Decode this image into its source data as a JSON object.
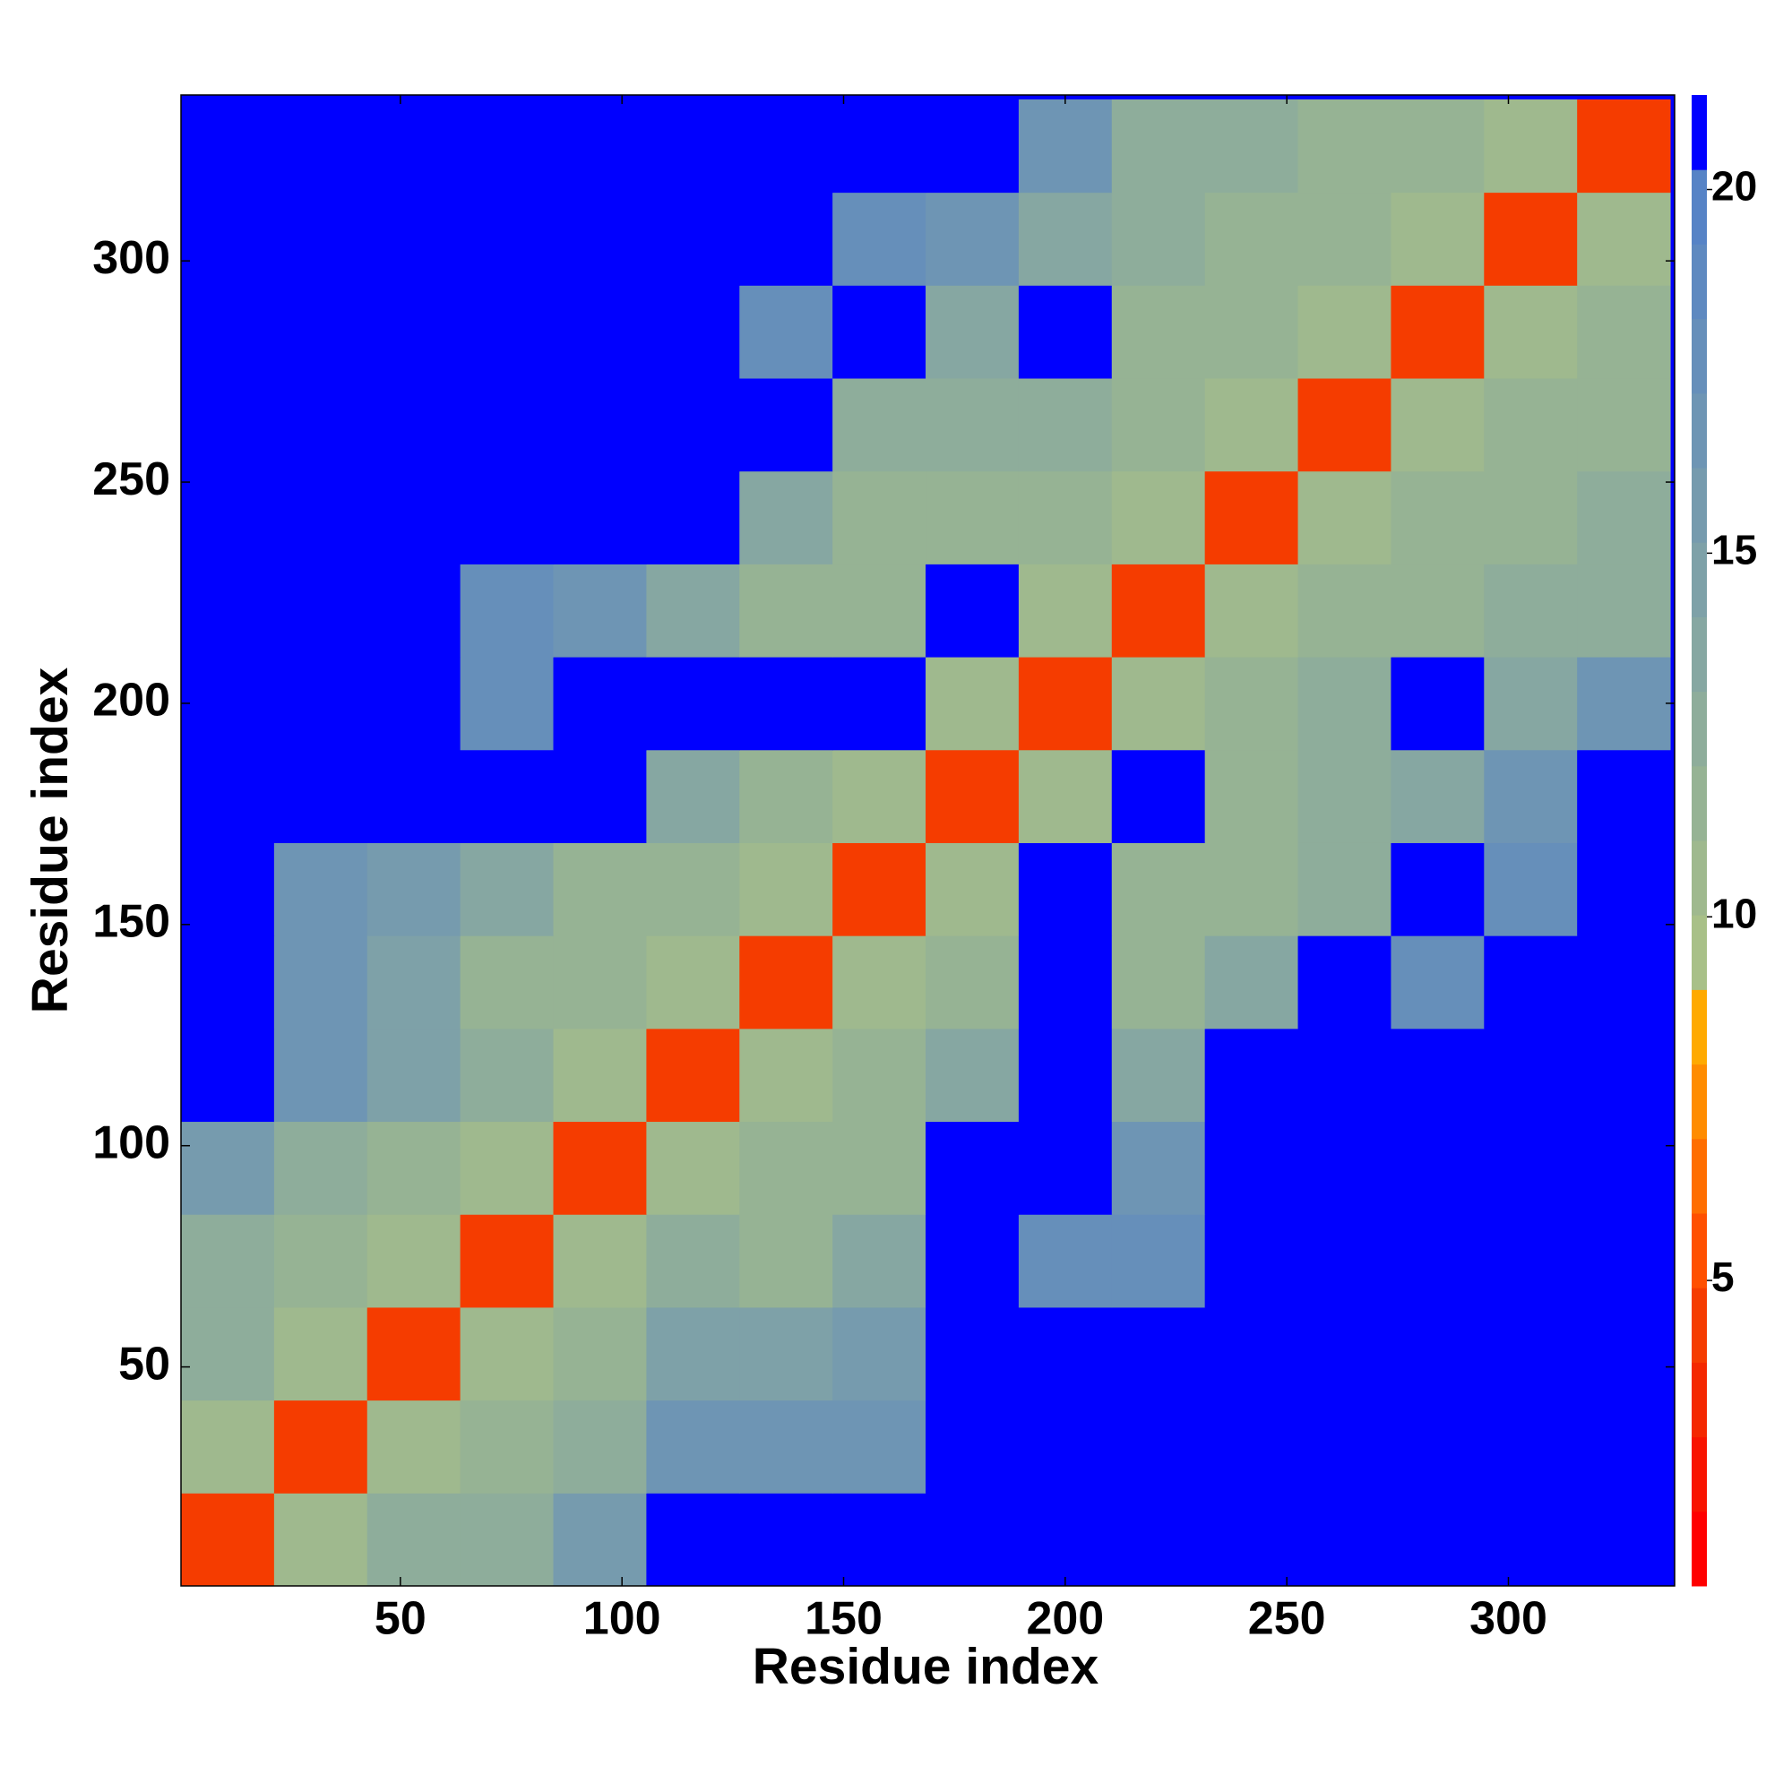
{
  "chart_data": {
    "type": "heatmap",
    "x_label": "Residue index",
    "y_label": "Residue index",
    "x": [
      11,
      32,
      53,
      74,
      95,
      116,
      137,
      158,
      179,
      200,
      221,
      242,
      263,
      284,
      305,
      326
    ],
    "y": [
      11,
      32,
      53,
      74,
      95,
      116,
      137,
      158,
      179,
      200,
      221,
      242,
      263,
      284,
      305,
      326
    ],
    "z": [
      [
        4,
        11,
        13,
        13,
        16,
        25,
        25,
        25,
        25,
        25,
        25,
        25,
        25,
        25,
        25,
        25
      ],
      [
        11,
        4,
        11,
        12,
        13,
        17,
        17,
        17,
        25,
        25,
        25,
        25,
        25,
        25,
        25,
        25
      ],
      [
        13,
        11,
        4,
        11,
        12,
        15,
        15,
        16,
        25,
        25,
        25,
        25,
        25,
        25,
        25,
        25
      ],
      [
        13,
        12,
        11,
        4,
        11,
        13,
        12,
        14,
        25,
        18,
        18,
        25,
        25,
        25,
        25,
        25
      ],
      [
        16,
        13,
        12,
        11,
        4,
        11,
        12,
        12,
        25,
        25,
        17,
        25,
        25,
        25,
        25,
        25
      ],
      [
        25,
        17,
        15,
        13,
        11,
        4,
        11,
        12,
        14,
        25,
        14,
        25,
        25,
        25,
        25,
        25
      ],
      [
        25,
        17,
        15,
        12,
        12,
        11,
        4,
        11,
        12,
        25,
        12,
        14,
        25,
        18,
        25,
        25
      ],
      [
        25,
        17,
        16,
        14,
        12,
        12,
        11,
        4,
        11,
        25,
        12,
        12,
        13,
        25,
        18,
        25
      ],
      [
        25,
        25,
        25,
        25,
        25,
        14,
        12,
        11,
        4,
        11,
        25,
        12,
        13,
        14,
        17,
        25
      ],
      [
        25,
        25,
        25,
        18,
        25,
        25,
        25,
        25,
        11,
        4,
        11,
        12,
        13,
        25,
        14,
        17
      ],
      [
        25,
        25,
        25,
        18,
        17,
        14,
        12,
        12,
        25,
        11,
        4,
        11,
        12,
        12,
        13,
        13
      ],
      [
        25,
        25,
        25,
        25,
        25,
        25,
        14,
        12,
        12,
        12,
        11,
        4,
        11,
        12,
        12,
        13
      ],
      [
        25,
        25,
        25,
        25,
        25,
        25,
        25,
        13,
        13,
        13,
        12,
        11,
        4,
        11,
        12,
        12
      ],
      [
        25,
        25,
        25,
        25,
        25,
        25,
        18,
        25,
        14,
        25,
        12,
        12,
        11,
        4,
        11,
        12
      ],
      [
        25,
        25,
        25,
        25,
        25,
        25,
        25,
        18,
        17,
        14,
        13,
        12,
        12,
        11,
        4,
        11
      ],
      [
        25,
        25,
        25,
        25,
        25,
        25,
        25,
        25,
        25,
        17,
        13,
        13,
        12,
        12,
        11,
        4
      ]
    ],
    "xlim": [
      0.5,
      337.5
    ],
    "ylim": [
      0.5,
      337.5
    ],
    "xticks": [
      50,
      100,
      150,
      200,
      250,
      300
    ],
    "yticks": [
      50,
      100,
      150,
      200,
      250,
      300
    ],
    "clim": [
      0.8,
      21.3
    ],
    "cticks": [
      5,
      10,
      15,
      20
    ],
    "colors": [
      "#ff0000",
      "#f81400",
      "#f42800",
      "#f53c00",
      "#ff5000",
      "#ff6e00",
      "#ff8c00",
      "#ffaa00",
      "#a8c088",
      "#9fb98e",
      "#96b394",
      "#8ead9b",
      "#86a7a2",
      "#7ea1a8",
      "#769bae",
      "#6e95b4",
      "#668fba",
      "#5e89c0",
      "#5683c6",
      "#0000ff"
    ]
  }
}
